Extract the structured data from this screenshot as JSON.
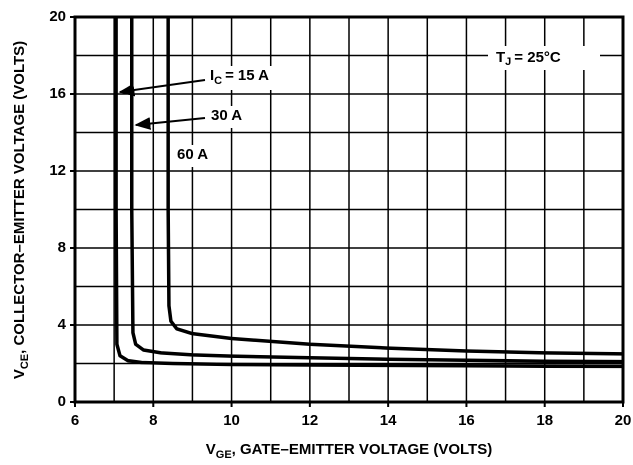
{
  "chart_data": {
    "type": "line",
    "y_axis_label": {
      "main": "V",
      "sub": "CE",
      "rest": ", COLLECTOR–EMITTER VOLTAGE (VOLTS)"
    },
    "x_axis_label": {
      "main": "V",
      "sub": "GE",
      "rest": ", GATE–EMITTER VOLTAGE (VOLTS)"
    },
    "current_symbol": {
      "main": "I",
      "sub": "C",
      "eq": "="
    },
    "temperature_note": {
      "main": "T",
      "sub": "J",
      "rest": "= 25°C"
    },
    "xlim": [
      6,
      20
    ],
    "ylim": [
      0,
      20
    ],
    "xticks": [
      6,
      8,
      10,
      12,
      14,
      16,
      18,
      20
    ],
    "yticks": [
      0,
      4,
      8,
      12,
      16,
      20
    ],
    "xgrid": [
      7,
      8,
      9,
      10,
      11,
      12,
      13,
      14,
      15,
      16,
      17,
      18,
      19
    ],
    "ygrid": [
      2,
      4,
      6,
      8,
      10,
      12,
      14,
      16,
      18
    ],
    "grid": true,
    "series": [
      {
        "name": "15 A",
        "color": "#000000",
        "x": [
          7.05,
          7.05,
          7.07,
          7.15,
          7.35,
          7.7,
          8.5,
          10,
          12,
          14,
          16,
          18,
          20
        ],
        "values": [
          20,
          10,
          3,
          2.4,
          2.15,
          2.05,
          2.0,
          1.95,
          1.92,
          1.9,
          1.88,
          1.86,
          1.85
        ]
      },
      {
        "name": "30 A",
        "color": "#000000",
        "x": [
          7.45,
          7.45,
          7.48,
          7.55,
          7.75,
          8.2,
          9,
          10,
          12,
          14,
          16,
          18,
          20
        ],
        "values": [
          20,
          10,
          3.6,
          3.0,
          2.7,
          2.55,
          2.45,
          2.38,
          2.3,
          2.22,
          2.17,
          2.12,
          2.1
        ]
      },
      {
        "name": "60 A",
        "color": "#000000",
        "x": [
          8.38,
          8.38,
          8.4,
          8.45,
          8.6,
          9,
          10,
          12,
          14,
          16,
          18,
          20
        ],
        "values": [
          20,
          10,
          5,
          4.2,
          3.8,
          3.55,
          3.3,
          3.0,
          2.8,
          2.65,
          2.55,
          2.5
        ]
      }
    ]
  }
}
